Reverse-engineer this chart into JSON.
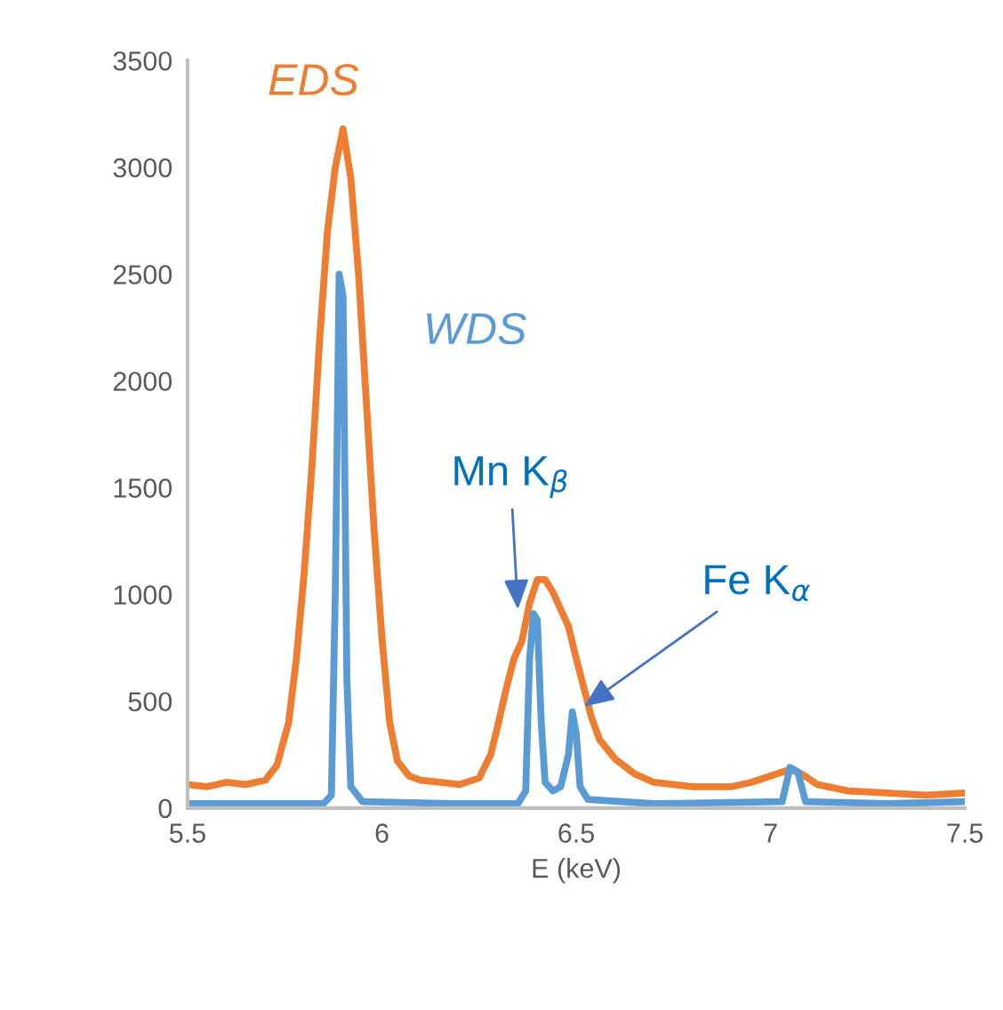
{
  "chart_data": {
    "type": "line",
    "xlabel": "E (keV)",
    "xlim": [
      5.5,
      7.5
    ],
    "xticks": [
      5.5,
      6,
      6.5,
      7,
      7.5
    ],
    "ylim": [
      0,
      3500
    ],
    "yticks": [
      0,
      500,
      1000,
      1500,
      2000,
      2500,
      3000,
      3500
    ],
    "grid": false,
    "legend": false,
    "marker": "none",
    "line_style": "solid",
    "series": [
      {
        "name": "EDS",
        "color": "#ed7d31",
        "x": [
          5.5,
          5.55,
          5.6,
          5.65,
          5.7,
          5.73,
          5.76,
          5.78,
          5.8,
          5.82,
          5.84,
          5.86,
          5.88,
          5.9,
          5.92,
          5.94,
          5.96,
          5.98,
          6.0,
          6.02,
          6.04,
          6.07,
          6.1,
          6.15,
          6.2,
          6.25,
          6.28,
          6.3,
          6.32,
          6.34,
          6.36,
          6.38,
          6.4,
          6.42,
          6.44,
          6.46,
          6.48,
          6.5,
          6.52,
          6.54,
          6.56,
          6.6,
          6.65,
          6.7,
          6.8,
          6.9,
          6.95,
          7.0,
          7.05,
          7.08,
          7.12,
          7.2,
          7.3,
          7.4,
          7.5
        ],
        "values": [
          110,
          100,
          120,
          110,
          130,
          200,
          400,
          700,
          1100,
          1600,
          2200,
          2700,
          3000,
          3180,
          2950,
          2500,
          1900,
          1300,
          800,
          400,
          220,
          150,
          130,
          120,
          110,
          140,
          250,
          400,
          560,
          700,
          780,
          960,
          1070,
          1070,
          1010,
          930,
          850,
          700,
          560,
          420,
          320,
          230,
          160,
          120,
          100,
          100,
          120,
          150,
          180,
          160,
          110,
          80,
          70,
          60,
          70
        ]
      },
      {
        "name": "WDS",
        "color": "#5b9bd5",
        "x": [
          5.5,
          5.7,
          5.85,
          5.87,
          5.88,
          5.89,
          5.9,
          5.91,
          5.92,
          5.95,
          6.2,
          6.35,
          6.37,
          6.38,
          6.39,
          6.4,
          6.41,
          6.42,
          6.44,
          6.46,
          6.48,
          6.49,
          6.5,
          6.51,
          6.53,
          6.7,
          7.03,
          7.05,
          7.07,
          7.09,
          7.3,
          7.5
        ],
        "values": [
          20,
          20,
          20,
          60,
          1000,
          2500,
          2400,
          600,
          100,
          30,
          20,
          20,
          80,
          700,
          910,
          880,
          400,
          120,
          80,
          100,
          250,
          450,
          350,
          100,
          40,
          20,
          30,
          190,
          170,
          30,
          20,
          30
        ]
      }
    ],
    "annotations": [
      {
        "text": "Mn K$_{β}$",
        "x": 6.35,
        "y": 930
      },
      {
        "text": "Fe K$_{α}$",
        "x": 6.52,
        "y": 475
      }
    ]
  }
}
